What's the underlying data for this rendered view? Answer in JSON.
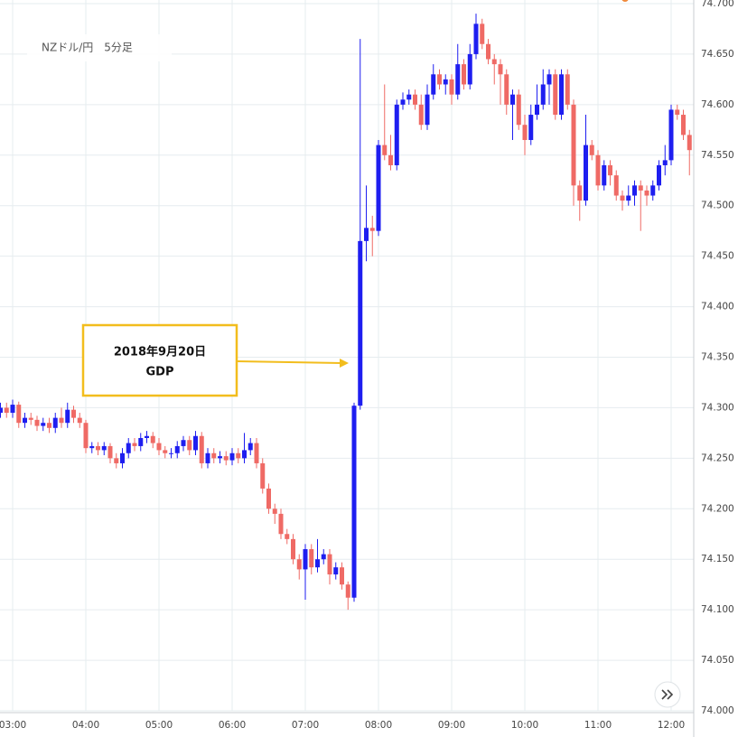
{
  "chart_data": {
    "type": "candlestick",
    "title": "NZドル/円　5分足",
    "annotation": [
      "2018年9月20日",
      "GDP"
    ],
    "up_color": "#1e1ef0",
    "down_color": "#ef6a65",
    "categories": [
      null,
      null,
      "03:00",
      null,
      null,
      null,
      null,
      null,
      null,
      null,
      null,
      null,
      null,
      null,
      "04:00",
      null,
      null,
      null,
      null,
      null,
      null,
      null,
      null,
      null,
      null,
      null,
      "05:00",
      null,
      null,
      null,
      null,
      null,
      null,
      null,
      null,
      null,
      null,
      null,
      "06:00",
      null,
      null,
      null,
      null,
      null,
      null,
      null,
      null,
      null,
      null,
      null,
      "07:00",
      null,
      null,
      null,
      null,
      null,
      null,
      null,
      null,
      null,
      null,
      null,
      "08:00",
      null,
      null,
      null,
      null,
      null,
      null,
      null,
      null,
      null,
      null,
      null,
      "09:00",
      null,
      null,
      null,
      null,
      null,
      null,
      null,
      null,
      null,
      null,
      null,
      "10:00",
      null,
      null,
      null,
      null,
      null,
      null,
      null,
      null,
      null,
      null,
      null,
      "11:00",
      null,
      null,
      null,
      null,
      null,
      null,
      null,
      null,
      null,
      null,
      null,
      "12:00",
      null,
      null,
      null
    ],
    "open": [
      74.295,
      74.3,
      74.295,
      74.303,
      74.285,
      74.29,
      74.288,
      74.282,
      74.285,
      74.28,
      74.29,
      74.285,
      74.298,
      74.29,
      74.285,
      74.26,
      74.262,
      74.258,
      74.262,
      74.25,
      74.245,
      74.255,
      74.265,
      74.262,
      74.27,
      74.272,
      74.265,
      74.258,
      74.255,
      74.255,
      74.262,
      74.268,
      74.258,
      74.272,
      74.245,
      74.255,
      74.25,
      74.252,
      74.248,
      74.255,
      74.25,
      74.258,
      74.265,
      74.245,
      74.22,
      74.2,
      74.195,
      74.175,
      74.17,
      74.15,
      74.14,
      74.16,
      74.142,
      74.15,
      74.155,
      74.135,
      74.142,
      74.125,
      74.112,
      74.302,
      74.465,
      74.478,
      74.475,
      74.56,
      74.55,
      74.54,
      74.6,
      74.605,
      74.61,
      74.6,
      74.58,
      74.61,
      74.63,
      74.62,
      74.625,
      74.61,
      74.64,
      74.62,
      74.65,
      74.68,
      74.66,
      74.645,
      74.64,
      74.63,
      74.6,
      74.61,
      74.58,
      74.565,
      74.59,
      74.6,
      74.62,
      74.63,
      74.59,
      74.63,
      74.6,
      74.52,
      74.505,
      74.56,
      74.55,
      74.52,
      74.54,
      74.53,
      74.51,
      74.505,
      74.51,
      74.52,
      74.515,
      74.51,
      74.52,
      74.54,
      74.545,
      74.595,
      74.59,
      74.57
    ],
    "high": [
      74.305,
      74.305,
      74.308,
      74.306,
      74.295,
      74.295,
      74.292,
      74.29,
      74.29,
      74.295,
      74.3,
      74.305,
      74.302,
      74.295,
      74.288,
      74.266,
      74.266,
      74.266,
      74.265,
      74.255,
      74.26,
      74.27,
      74.27,
      74.275,
      74.277,
      74.276,
      74.27,
      74.262,
      74.26,
      74.267,
      74.272,
      74.272,
      74.277,
      74.276,
      74.26,
      74.26,
      74.257,
      74.257,
      74.26,
      74.26,
      74.275,
      74.27,
      74.27,
      74.25,
      74.225,
      74.205,
      74.2,
      74.18,
      74.175,
      74.155,
      74.165,
      74.165,
      74.17,
      74.16,
      74.16,
      74.147,
      74.147,
      74.128,
      74.305,
      74.665,
      74.52,
      74.49,
      74.565,
      74.62,
      74.57,
      74.605,
      74.612,
      74.615,
      74.615,
      74.61,
      74.62,
      74.64,
      74.635,
      74.63,
      74.63,
      74.66,
      74.645,
      74.66,
      74.69,
      74.685,
      74.665,
      74.65,
      74.645,
      74.635,
      74.615,
      74.615,
      74.59,
      74.6,
      74.62,
      74.635,
      74.635,
      74.635,
      74.635,
      74.635,
      74.605,
      74.525,
      74.59,
      74.565,
      74.555,
      74.545,
      74.545,
      74.535,
      74.515,
      74.52,
      74.525,
      74.525,
      74.52,
      74.525,
      74.545,
      74.56,
      74.6,
      74.6,
      74.595,
      74.575
    ],
    "low": [
      74.29,
      74.29,
      74.29,
      74.28,
      74.28,
      74.283,
      74.277,
      74.277,
      74.275,
      74.275,
      74.28,
      74.28,
      74.285,
      74.28,
      74.255,
      74.255,
      74.253,
      74.253,
      74.245,
      74.24,
      74.24,
      74.25,
      74.257,
      74.257,
      74.265,
      74.26,
      74.253,
      74.25,
      74.25,
      74.25,
      74.257,
      74.253,
      74.253,
      74.24,
      74.24,
      74.245,
      74.245,
      74.243,
      74.243,
      74.245,
      74.245,
      74.253,
      74.24,
      74.215,
      74.195,
      74.185,
      74.17,
      74.165,
      74.145,
      74.13,
      74.11,
      74.135,
      74.137,
      74.145,
      74.125,
      74.13,
      74.12,
      74.1,
      74.108,
      74.298,
      74.445,
      74.45,
      74.47,
      74.545,
      74.535,
      74.535,
      74.595,
      74.6,
      74.595,
      74.575,
      74.575,
      74.605,
      74.615,
      74.61,
      74.6,
      74.605,
      74.615,
      74.615,
      74.645,
      74.655,
      74.64,
      74.62,
      74.6,
      74.59,
      74.565,
      74.575,
      74.55,
      74.56,
      74.585,
      74.595,
      74.6,
      74.585,
      74.585,
      74.595,
      74.5,
      74.485,
      74.5,
      74.545,
      74.515,
      74.515,
      74.52,
      74.505,
      74.495,
      74.5,
      74.5,
      74.475,
      74.5,
      74.505,
      74.515,
      74.53,
      74.54,
      74.585,
      74.565,
      74.53
    ],
    "close": [
      74.3,
      74.295,
      74.303,
      74.285,
      74.29,
      74.288,
      74.282,
      74.285,
      74.28,
      74.29,
      74.285,
      74.298,
      74.29,
      74.285,
      74.26,
      74.262,
      74.258,
      74.262,
      74.25,
      74.245,
      74.255,
      74.265,
      74.262,
      74.27,
      74.272,
      74.265,
      74.258,
      74.255,
      74.255,
      74.262,
      74.268,
      74.258,
      74.272,
      74.245,
      74.255,
      74.25,
      74.252,
      74.248,
      74.255,
      74.25,
      74.258,
      74.265,
      74.245,
      74.22,
      74.2,
      74.195,
      74.175,
      74.17,
      74.15,
      74.14,
      74.16,
      74.142,
      74.15,
      74.155,
      74.135,
      74.142,
      74.125,
      74.112,
      74.302,
      74.465,
      74.478,
      74.475,
      74.56,
      74.55,
      74.54,
      74.6,
      74.605,
      74.61,
      74.6,
      74.58,
      74.61,
      74.63,
      74.62,
      74.625,
      74.61,
      74.64,
      74.62,
      74.65,
      74.68,
      74.66,
      74.645,
      74.64,
      74.63,
      74.6,
      74.61,
      74.58,
      74.565,
      74.59,
      74.6,
      74.62,
      74.63,
      74.59,
      74.63,
      74.6,
      74.52,
      74.505,
      74.56,
      74.55,
      74.52,
      74.54,
      74.53,
      74.51,
      74.505,
      74.51,
      74.52,
      74.515,
      74.51,
      74.52,
      74.54,
      74.545,
      74.595,
      74.59,
      74.57,
      74.555
    ],
    "ylim": [
      74.0,
      74.7
    ],
    "yticks": [
      {
        "value": 74.0,
        "label": "74.000"
      },
      {
        "value": 74.05,
        "label": "74.050"
      },
      {
        "value": 74.1,
        "label": "74.100"
      },
      {
        "value": 74.15,
        "label": "74.150"
      },
      {
        "value": 74.2,
        "label": "74.200"
      },
      {
        "value": 74.25,
        "label": "74.250"
      },
      {
        "value": 74.3,
        "label": "74.300"
      },
      {
        "value": 74.35,
        "label": "74.350"
      },
      {
        "value": 74.4,
        "label": "74.400"
      },
      {
        "value": 74.45,
        "label": "74.450"
      },
      {
        "value": 74.5,
        "label": "74.500"
      },
      {
        "value": 74.55,
        "label": "74.550"
      },
      {
        "value": 74.6,
        "label": "74.600"
      },
      {
        "value": 74.65,
        "label": "74.650"
      },
      {
        "value": 74.7,
        "label": "74.700"
      }
    ],
    "grid": true
  }
}
